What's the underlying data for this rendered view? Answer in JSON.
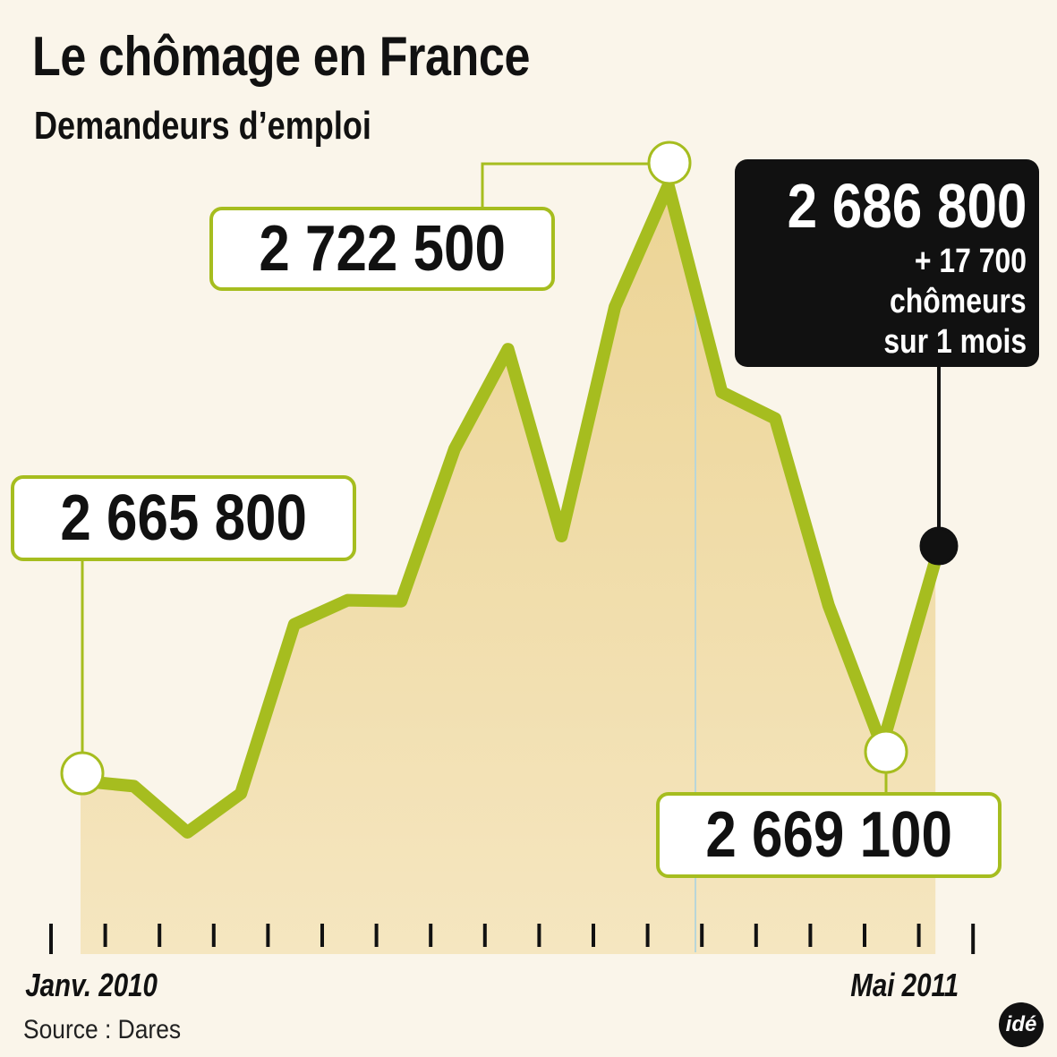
{
  "title": "Le chômage en France",
  "subtitle": "Demandeurs d’emploi",
  "source": "Source : Dares",
  "logo": "idé",
  "x_start_label": "Janv. 2010",
  "x_end_label": "Mai 2011",
  "callouts": {
    "first": "2 665 800",
    "max": "2 722 500",
    "min": "2 669 100",
    "last": "2 686 800",
    "last_change": "+ 17 700",
    "last_note_1": "chômeurs",
    "last_note_2": "sur 1 mois"
  },
  "colors": {
    "line": "#a6bd1f",
    "area": "#ecd495",
    "background": "#faf5ea",
    "label_box": "#111111"
  },
  "chart_data": {
    "type": "area",
    "title": "Le chômage en France",
    "subtitle": "Demandeurs d’emploi",
    "series_name": "",
    "x": [
      "2010-01",
      "2010-02",
      "2010-03",
      "2010-04",
      "2010-05",
      "2010-06",
      "2010-07",
      "2010-08",
      "2010-09",
      "2010-10",
      "2010-11",
      "2010-12",
      "2011-01",
      "2011-02",
      "2011-03",
      "2011-04",
      "2011-05"
    ],
    "values": [
      2665800,
      2665300,
      2660900,
      2664600,
      2680700,
      2683000,
      2682900,
      2697400,
      2706900,
      2689100,
      2710900,
      2722500,
      2702800,
      2700300,
      2682500,
      2669100,
      2686800
    ],
    "annotated": [
      {
        "x": "2010-01",
        "value": 2665800,
        "label": "2 665 800"
      },
      {
        "x": "2010-12",
        "value": 2722500,
        "label": "2 722 500"
      },
      {
        "x": "2011-04",
        "value": 2669100,
        "label": "2 669 100"
      },
      {
        "x": "2011-05",
        "value": 2686800,
        "label": "2 686 800",
        "note": "+ 17 700 chômeurs sur 1 mois"
      }
    ],
    "tick_count": 18,
    "grid": false
  }
}
